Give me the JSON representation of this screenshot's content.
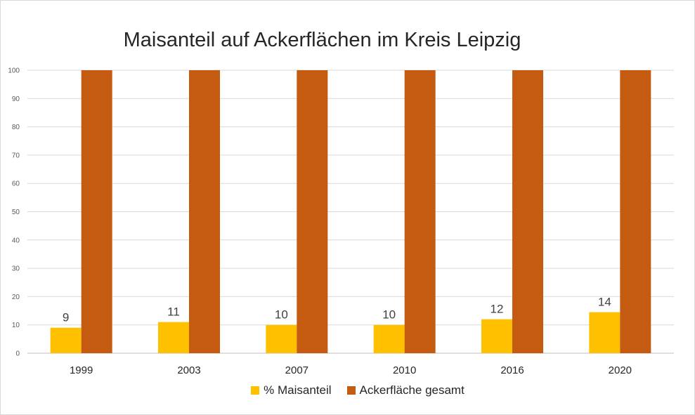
{
  "chart_data": {
    "type": "bar",
    "title": "Maisanteil auf Ackerflächen im Kreis Leipzig",
    "categories": [
      "1999",
      "2003",
      "2007",
      "2010",
      "2016",
      "2020"
    ],
    "series": [
      {
        "name": "% Maisanteil",
        "values": [
          9,
          11,
          10,
          10,
          12,
          14.5
        ],
        "labels": [
          "9",
          "11",
          "10",
          "10",
          "12",
          "14"
        ],
        "color": "#FFC000"
      },
      {
        "name": "Ackerfläche gesamt",
        "values": [
          100,
          100,
          100,
          100,
          100,
          100
        ],
        "color": "#C55A11"
      }
    ],
    "yticks": [
      "0",
      "10",
      "20",
      "30",
      "40",
      "50",
      "60",
      "70",
      "80",
      "90",
      "100"
    ],
    "ylim": [
      0,
      100
    ],
    "grid": true,
    "legend": "bottom"
  }
}
